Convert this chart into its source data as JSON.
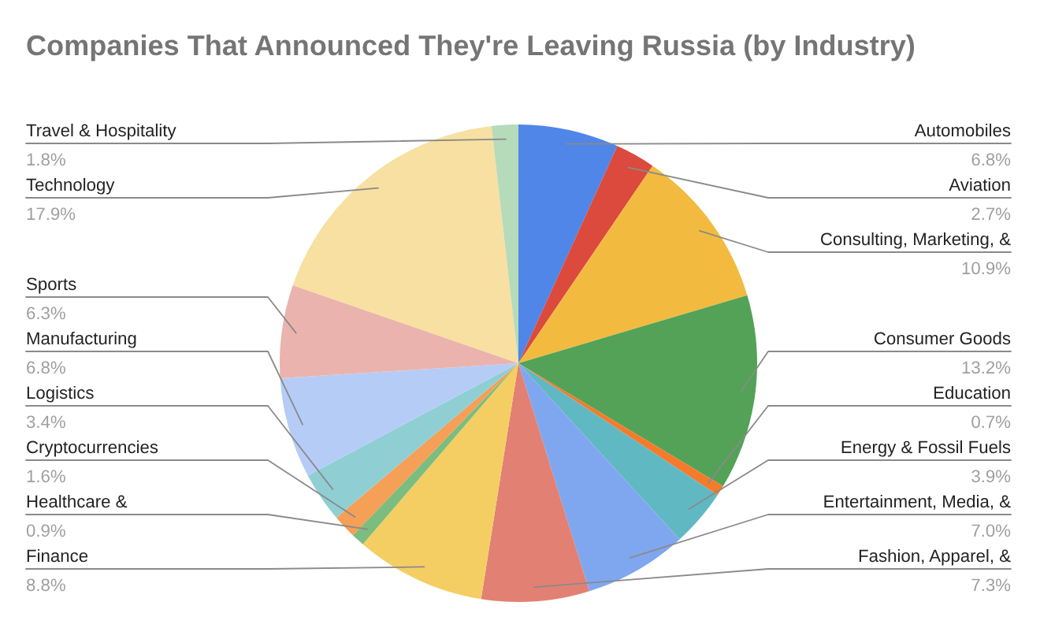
{
  "chart_data": {
    "type": "pie",
    "title": "Companies That Announced They're Leaving Russia (by Industry)",
    "categories": [
      "Automobiles",
      "Aviation",
      "Consulting, Marketing, &",
      "Consumer Goods",
      "Education",
      "Energy & Fossil Fuels",
      "Entertainment, Media, &",
      "Fashion, Apparel, &",
      "Finance",
      "Healthcare &",
      "Cryptocurrencies",
      "Logistics",
      "Manufacturing",
      "Sports",
      "Technology",
      "Travel & Hospitality"
    ],
    "values": [
      6.8,
      2.7,
      10.9,
      13.2,
      0.7,
      3.9,
      7.0,
      7.3,
      8.8,
      0.9,
      1.6,
      3.4,
      6.8,
      6.3,
      17.9,
      1.8
    ],
    "colors": [
      "#4f86e8",
      "#db4a3d",
      "#f2bb3f",
      "#53a258",
      "#f47b2b",
      "#60b8c2",
      "#7fa7ef",
      "#e28073",
      "#f4ce63",
      "#7cbd7f",
      "#f59f57",
      "#8fcfd4",
      "#b5cdf6",
      "#ebb3ae",
      "#f7e0a1",
      "#b5dbbb"
    ],
    "value_labels": [
      "6.8%",
      "2.7%",
      "10.9%",
      "13.2%",
      "0.7%",
      "3.9%",
      "7.0%",
      "7.3%",
      "8.8%",
      "0.9%",
      "1.6%",
      "3.4%",
      "6.8%",
      "6.3%",
      "17.9%",
      "1.8%"
    ]
  }
}
